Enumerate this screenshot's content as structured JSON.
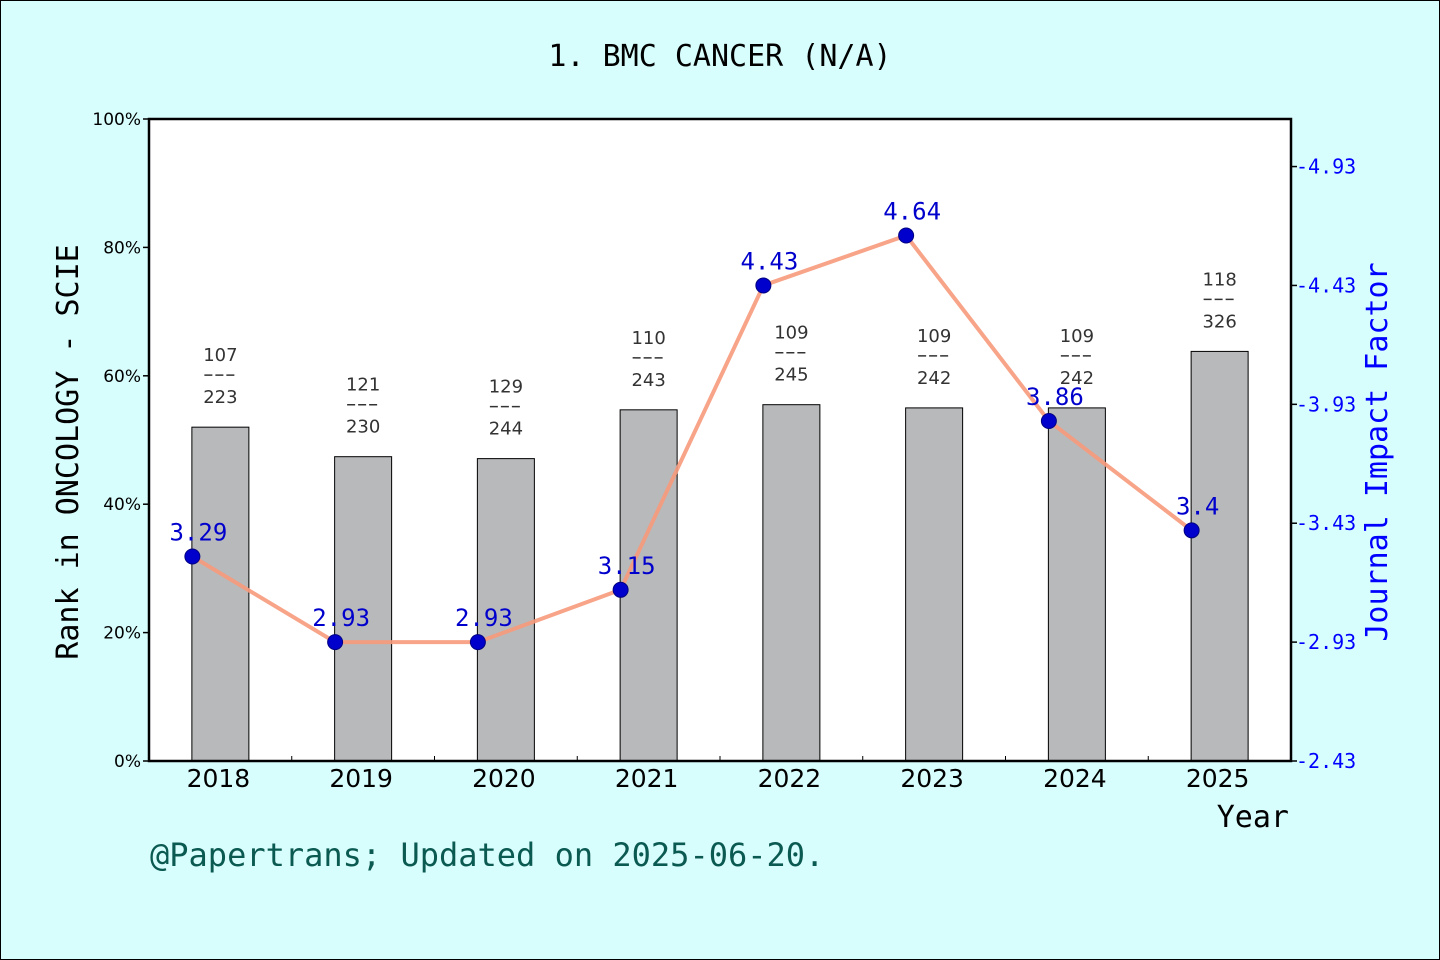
{
  "chart_data": {
    "type": "bar+line",
    "title": "1. BMC CANCER (N/A)",
    "xlabel": "Year",
    "ylabel_left": "Rank in ONCOLOGY - SCIE",
    "ylabel_right": "Journal Impact Factor",
    "footer": "@Papertrans; Updated on 2025-06-20.",
    "categories": [
      "2018",
      "2019",
      "2020",
      "2021",
      "2022",
      "2023",
      "2024",
      "2025"
    ],
    "left_axis": {
      "ylim": [
        0,
        100
      ],
      "ticks": [
        "0%",
        "20%",
        "40%",
        "60%",
        "80%",
        "100%"
      ]
    },
    "right_axis": {
      "ylim": [
        2.43,
        5.13
      ],
      "ticks": [
        "2.43",
        "2.93",
        "3.43",
        "3.93",
        "4.43",
        "4.93"
      ]
    },
    "bars": {
      "values_percent": [
        52.0,
        47.4,
        47.1,
        54.7,
        55.5,
        55.0,
        55.0,
        63.8
      ],
      "rank": [
        "107",
        "121",
        "129",
        "110",
        "109",
        "109",
        "109",
        "118"
      ],
      "total": [
        "223",
        "230",
        "244",
        "243",
        "245",
        "242",
        "242",
        "326"
      ],
      "color": "#b8b9bb"
    },
    "line": {
      "values": [
        3.29,
        2.93,
        2.93,
        3.15,
        4.43,
        4.64,
        3.86,
        3.4
      ],
      "labels": [
        "3.29",
        "2.93",
        "2.93",
        "3.15",
        "4.43",
        "4.64",
        "3.86",
        "3.4"
      ],
      "line_color": "#f79a7c",
      "marker_color": "#0000cc"
    },
    "colors": {
      "background": "#d8fdfd",
      "right_axis": "#0000ff",
      "footer": "#0b5a52",
      "rank_text": "#333333"
    },
    "grid": false
  }
}
